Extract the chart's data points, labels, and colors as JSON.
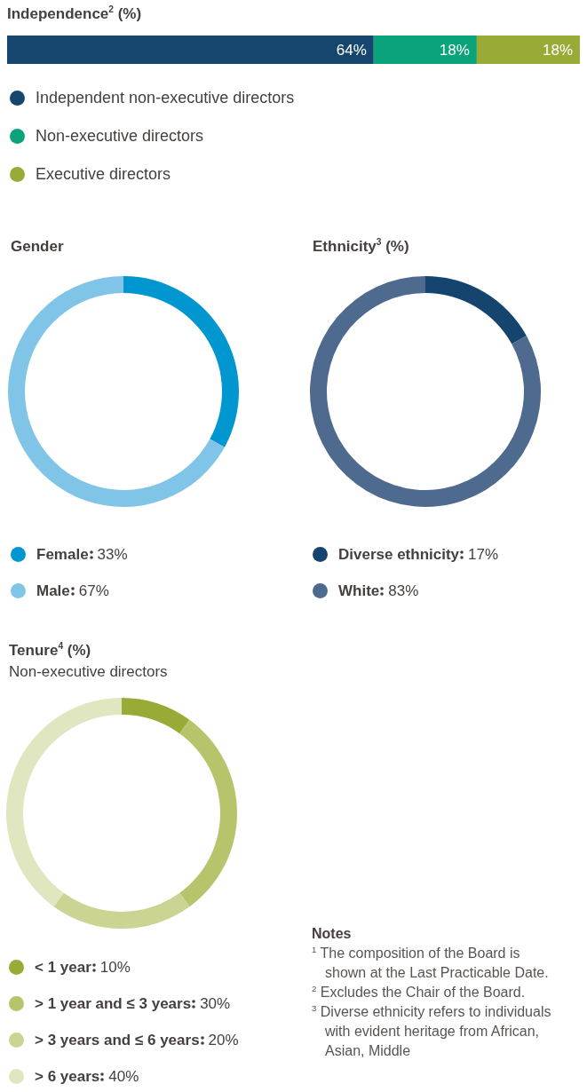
{
  "chart_data": [
    {
      "type": "bar",
      "orientation": "horizontal",
      "stacked": true,
      "title": "Independence$^{2}$ (%)",
      "categories": [
        null
      ],
      "tick_labels": false,
      "legend": "bottom",
      "series": [
        {
          "name": "Independent non-executive directors",
          "color": "#16466e",
          "values": [
            64
          ],
          "value_labels": [
            "64%"
          ]
        },
        {
          "name": "Non-executive directors",
          "color": "#0aa37a",
          "values": [
            18
          ],
          "value_labels": [
            "18%"
          ]
        },
        {
          "name": "Executive directors",
          "color": "#9aaa36",
          "values": [
            18
          ],
          "value_labels": [
            "18%"
          ]
        }
      ]
    },
    {
      "type": "donut",
      "title": "Gender",
      "legend": "bottom",
      "categories": [
        "Female",
        "Male"
      ],
      "values": [
        33,
        67
      ],
      "value_labels": [
        "33%",
        "67%"
      ],
      "colors": [
        "#0096d0",
        "#80c5e7"
      ]
    },
    {
      "type": "donut",
      "title": "Ethnicity$^{3}$ (%)",
      "legend": "bottom",
      "categories": [
        "Diverse ethnicity",
        "White"
      ],
      "values": [
        17,
        83
      ],
      "value_labels": [
        "17%",
        "83%"
      ],
      "colors": [
        "#15456e",
        "#4f6a8f"
      ]
    },
    {
      "type": "donut",
      "title": "Tenure$^{4}$ (%)",
      "subtitle": "Non-executive directors",
      "legend": "bottom",
      "categories": [
        "< 1 year",
        "> 1 year and ≤ 3 years",
        "> 3 years and ≤ 6 years",
        "> 6 years"
      ],
      "values": [
        10,
        30,
        20,
        40
      ],
      "value_labels": [
        "10%",
        "30%",
        "20%",
        "40%"
      ],
      "colors": [
        "#9aaa36",
        "#b8c46c",
        "#cbd493",
        "#e0e6bf"
      ]
    },
    {
      "type": "other",
      "title": "Notes",
      "annotations": [
        "$^{1}$ The composition of the Board is shown at the Last Practicable Date.",
        "$^{2}$ Excludes the Chair of the Board.",
        "$^{3}$ Diverse ethnicity refers to individuals with evident heritage from African, Asian, Middle"
      ]
    }
  ]
}
